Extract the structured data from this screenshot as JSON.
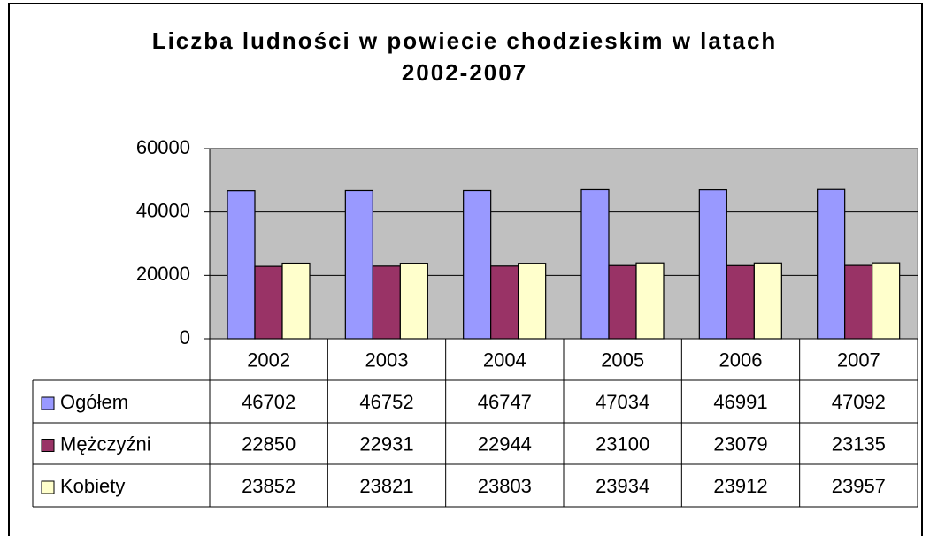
{
  "chart_data": {
    "type": "bar",
    "title": "Liczba ludności w powiecie chodzieskim w latach 2002-2007",
    "categories": [
      "2002",
      "2003",
      "2004",
      "2005",
      "2006",
      "2007"
    ],
    "series": [
      {
        "name": "Ogółem",
        "color": "#9999ff",
        "values": [
          46702,
          46752,
          46747,
          47034,
          46991,
          47092
        ]
      },
      {
        "name": "Mężczyźni",
        "color": "#993366",
        "values": [
          22850,
          22931,
          22944,
          23100,
          23079,
          23135
        ]
      },
      {
        "name": "Kobiety",
        "color": "#ffffcc",
        "values": [
          23852,
          23821,
          23803,
          23934,
          23912,
          23957
        ]
      }
    ],
    "ylim": [
      0,
      60000
    ],
    "yticks": [
      0,
      20000,
      40000,
      60000
    ],
    "grid": true,
    "plot_background": "#c0c0c0"
  }
}
